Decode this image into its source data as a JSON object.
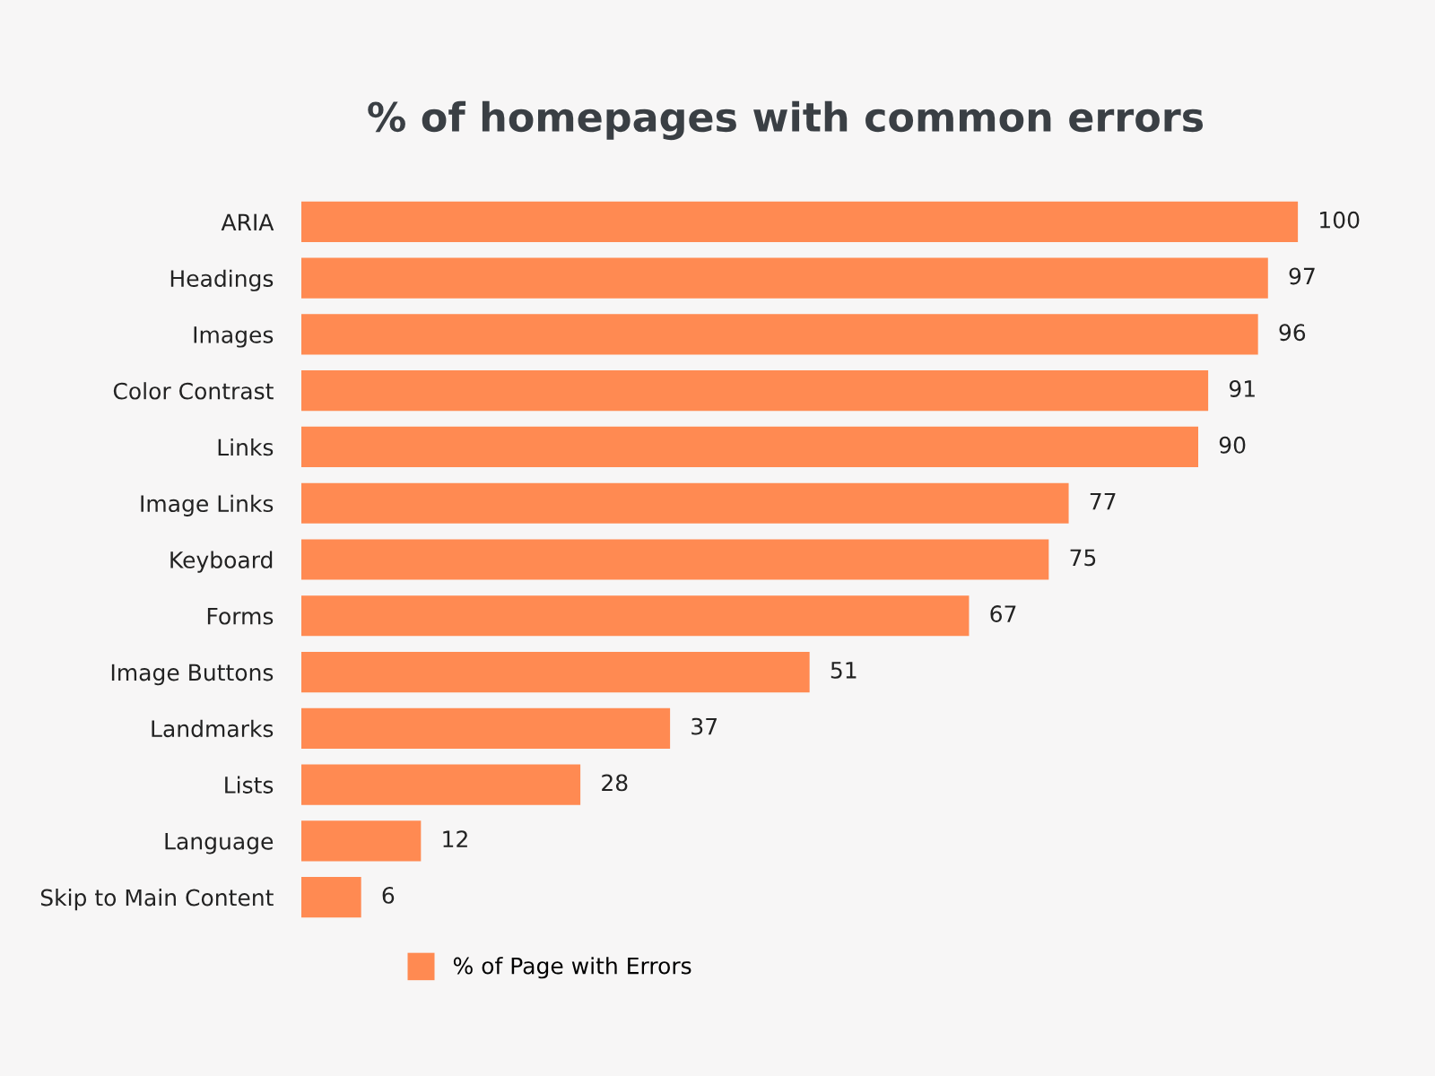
{
  "chart_data": {
    "type": "bar",
    "orientation": "horizontal",
    "title": "% of homepages with common errors",
    "categories": [
      "ARIA",
      "Headings",
      "Images",
      "Color Contrast",
      "Links",
      "Image Links",
      "Keyboard",
      "Forms",
      "Image Buttons",
      "Landmarks",
      "Lists",
      "Language",
      "Skip to Main Content"
    ],
    "series": [
      {
        "name": "% of Page with Errors",
        "color": "#ff8a52",
        "values": [
          100,
          97,
          96,
          91,
          90,
          77,
          75,
          67,
          51,
          37,
          28,
          12,
          6
        ]
      }
    ],
    "data_labels": true,
    "legend": "bottom",
    "grid": false,
    "tick_labels": "y"
  }
}
